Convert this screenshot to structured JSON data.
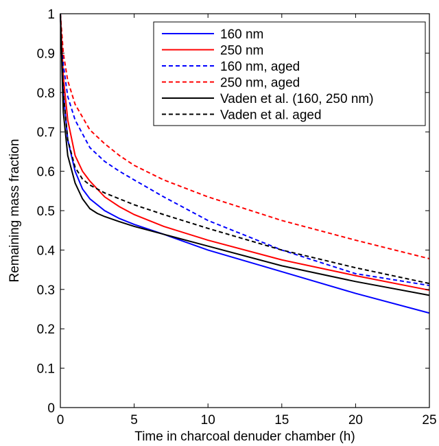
{
  "chart_data": {
    "type": "line",
    "title": "",
    "xlabel": "Time in charcoal denuder chamber (h)",
    "ylabel": "Remaining mass fraction",
    "xlim": [
      0,
      25
    ],
    "ylim": [
      0,
      1
    ],
    "xticks": [
      0,
      5,
      10,
      15,
      20,
      25
    ],
    "yticks": [
      0,
      0.1,
      0.2,
      0.3,
      0.4,
      0.5,
      0.6,
      0.7,
      0.8,
      0.9,
      1
    ],
    "ytick_labels": [
      "0",
      "0.1",
      "0.2",
      "0.3",
      "0.4",
      "0.5",
      "0.6",
      "0.7",
      "0.8",
      "0.9",
      "1"
    ],
    "xtick_labels": [
      "0",
      "5",
      "10",
      "15",
      "20",
      "25"
    ],
    "grid": false,
    "legend_position": "top-right",
    "series": [
      {
        "name": "160 nm",
        "color": "#0000ff",
        "dash": "solid",
        "x": [
          0,
          0.2,
          0.5,
          1,
          1.5,
          2,
          3,
          4,
          5,
          7,
          10,
          15,
          20,
          25
        ],
        "y": [
          1.0,
          0.8,
          0.68,
          0.6,
          0.555,
          0.53,
          0.5,
          0.48,
          0.465,
          0.44,
          0.4,
          0.345,
          0.29,
          0.24
        ]
      },
      {
        "name": "250 nm",
        "color": "#ff0000",
        "dash": "solid",
        "x": [
          0,
          0.2,
          0.5,
          1,
          1.5,
          2,
          3,
          4,
          5,
          7,
          10,
          15,
          20,
          25
        ],
        "y": [
          1.0,
          0.84,
          0.73,
          0.64,
          0.6,
          0.575,
          0.535,
          0.51,
          0.49,
          0.46,
          0.425,
          0.375,
          0.335,
          0.298
        ]
      },
      {
        "name": "160 nm, aged",
        "color": "#0000ff",
        "dash": "dashed",
        "x": [
          0,
          0.2,
          0.5,
          1,
          2,
          3,
          4,
          5,
          7,
          10,
          15,
          20,
          25
        ],
        "y": [
          1.0,
          0.87,
          0.79,
          0.73,
          0.66,
          0.625,
          0.6,
          0.578,
          0.535,
          0.475,
          0.4,
          0.34,
          0.31
        ]
      },
      {
        "name": "250 nm, aged",
        "color": "#ff0000",
        "dash": "dashed",
        "x": [
          0,
          0.2,
          0.5,
          1,
          2,
          3,
          4,
          5,
          7,
          10,
          15,
          20,
          25
        ],
        "y": [
          1.0,
          0.9,
          0.83,
          0.77,
          0.705,
          0.67,
          0.64,
          0.615,
          0.578,
          0.535,
          0.475,
          0.425,
          0.378
        ]
      },
      {
        "name": "Vaden et al. (160, 250 nm)",
        "color": "#000000",
        "dash": "solid",
        "x": [
          0,
          0.2,
          0.5,
          1,
          1.5,
          2,
          2.5,
          3,
          4,
          5,
          7,
          10,
          15,
          20,
          25
        ],
        "y": [
          1.0,
          0.75,
          0.64,
          0.57,
          0.53,
          0.505,
          0.493,
          0.485,
          0.472,
          0.46,
          0.44,
          0.41,
          0.36,
          0.32,
          0.285
        ]
      },
      {
        "name": "Vaden et al. aged",
        "color": "#000000",
        "dash": "dashed",
        "x": [
          0,
          0.2,
          0.5,
          1,
          1.5,
          2,
          3,
          4,
          5,
          7,
          10,
          15,
          20,
          25
        ],
        "y": [
          1.0,
          0.8,
          0.68,
          0.61,
          0.58,
          0.565,
          0.545,
          0.53,
          0.515,
          0.49,
          0.455,
          0.4,
          0.355,
          0.315
        ]
      }
    ]
  }
}
